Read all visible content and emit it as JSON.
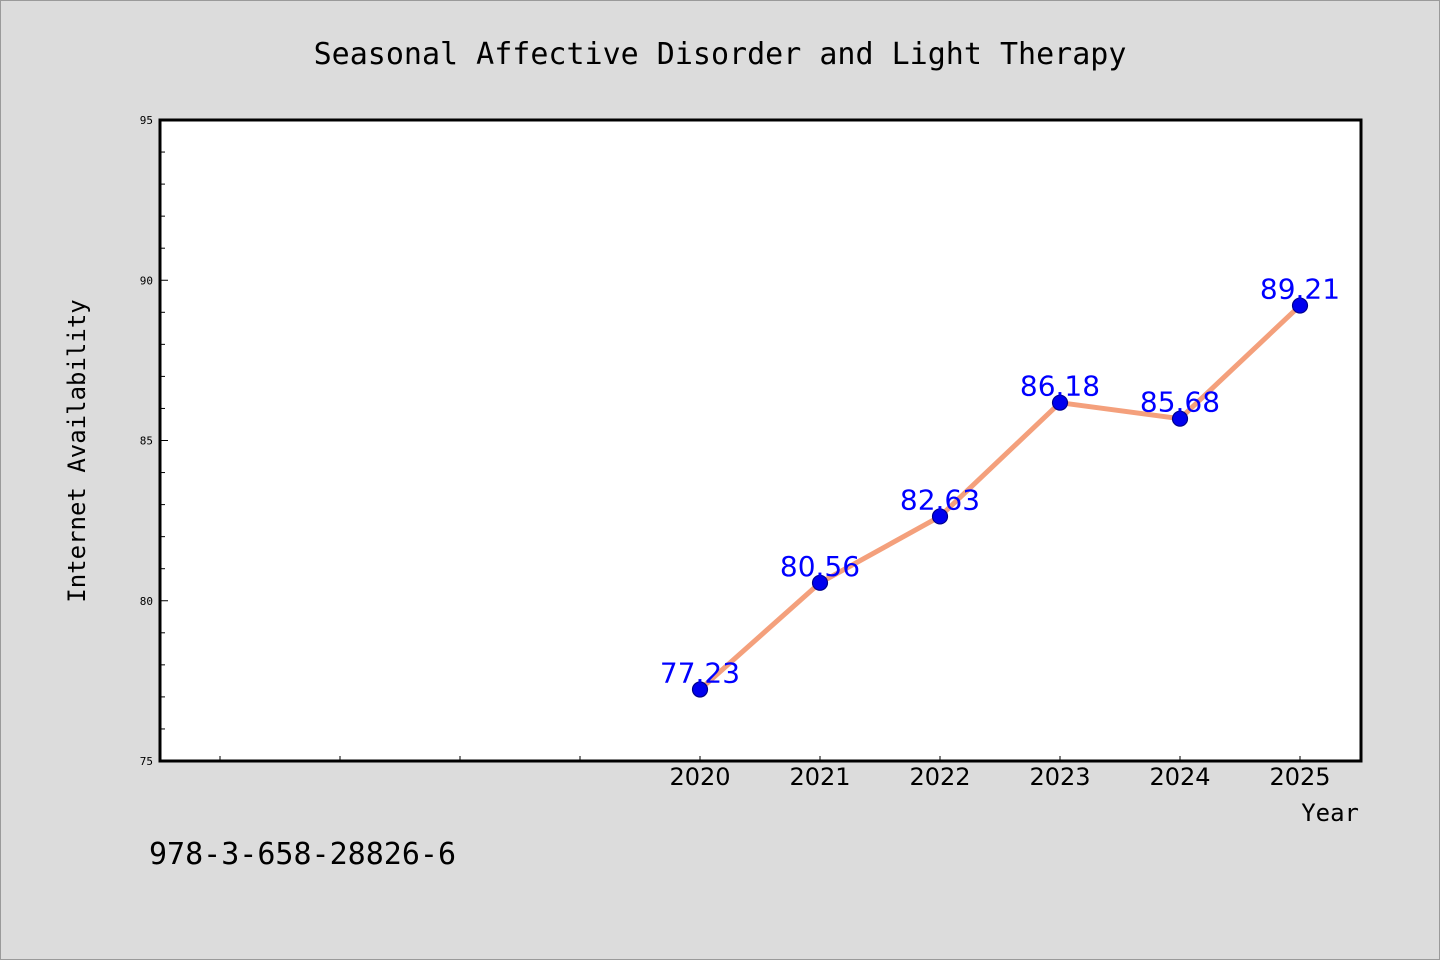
{
  "chart_data": {
    "type": "line",
    "title": "Seasonal Affective Disorder and Light Therapy",
    "xlabel": "Year",
    "ylabel": "Internet Availability",
    "categories": [
      "2020",
      "2021",
      "2022",
      "2023",
      "2024",
      "2025"
    ],
    "x_slots": 10,
    "series": [
      {
        "values": [
          77.23,
          80.56,
          82.63,
          86.18,
          85.68,
          89.21
        ],
        "data_labels": [
          "77.23",
          "80.56",
          "82.63",
          "86.18",
          "85.68",
          "89.21"
        ]
      }
    ],
    "ylim": [
      75,
      95
    ],
    "y_ticks": [
      "75",
      "80",
      "85",
      "90",
      "95"
    ],
    "grid": false,
    "colors": {
      "line": "#f4a07c",
      "marker": "#0000ee",
      "marker_edge": "#00008b",
      "data_label": "#0000ff",
      "background": "#dcdcdc",
      "plot_background": "#ffffff"
    }
  },
  "footer": {
    "isbn": "978-3-658-28826-6"
  }
}
